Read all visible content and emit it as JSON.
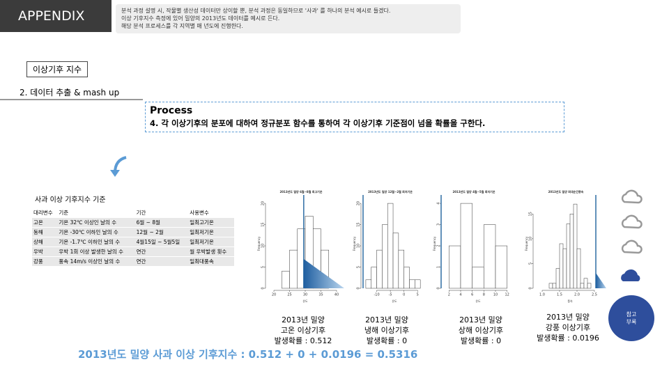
{
  "header": {
    "title": "APPENDIX",
    "notes": [
      "분석 과정 설명 시, 작물별 생산성 데이터만 상이할 뿐, 분석 과정은 동일하므로 '사과' 를 하나의 분석 예시로 들겠다.",
      "이상 기후지수 측정에 있어 밀양의 2013년도 데이터를 예시로 든다.",
      "해당 분석 프로세스를 각 지역별 매 년도에 진행한다."
    ]
  },
  "section": "이상기후 지수",
  "step": "2. 데이터 추출 & mash up",
  "process": {
    "title": "Process",
    "text": "4. 각 이상기후의 분포에 대하여 정규분포 함수를 통하여 각 이상기후 기준점이 넘을 확률을 구한다."
  },
  "table": {
    "title": "사과 이상 기후지수 기준",
    "header": [
      "대리변수",
      "기준",
      "기간",
      "사용변수"
    ],
    "rows": [
      [
        "고온",
        "기온 32℃ 이상인 날의 수",
        "6월 ~ 8월",
        "일최고기온"
      ],
      [
        "동해",
        "기온 -30℃ 이하인 날의 수",
        "12월 ~ 2월",
        "일최저기온"
      ],
      [
        "상해",
        "기온 -1.7℃ 이하인 날의 수",
        "4월15일 ~ 5월5일",
        "일최저기온"
      ],
      [
        "우박",
        "우박 1회 이상 발생한 날의 수",
        "연간",
        "월 우박발생 횟수"
      ],
      [
        "강풍",
        "풍속 14m/s 이상인 날의 수",
        "연간",
        "일최대풍속"
      ]
    ]
  },
  "histograms": [
    {
      "title": "2013년도 밀양 6월~8월 최고기온",
      "xlabel": "온도",
      "ylabel": "Frequency",
      "bins": [
        22.5,
        25,
        27.5,
        30,
        32.5,
        35,
        37.5
      ],
      "counts": [
        4,
        9,
        14,
        17,
        14,
        9
      ],
      "xlim": [
        18,
        42
      ],
      "ylim": [
        0,
        21
      ],
      "xticks": [
        20,
        25,
        30,
        35,
        40
      ],
      "yticks": [
        0,
        5,
        10,
        15,
        20
      ],
      "caption": [
        "2013년 밀양",
        "고온 이상기후",
        "발생확률 : 0.512"
      ]
    },
    {
      "title": "2013년도 밀양 12월~2월 최저기온",
      "xlabel": "온도",
      "ylabel": "Frequency",
      "bins": [
        -14,
        -12,
        -10,
        -8,
        -6,
        -4,
        -2,
        0,
        2,
        4,
        6
      ],
      "counts": [
        2,
        5,
        9,
        15,
        20,
        13,
        9,
        5,
        2,
        2
      ],
      "xlim": [
        -15,
        8
      ],
      "ylim": [
        0,
        21
      ],
      "xticks": [
        -10,
        -5,
        0,
        5
      ],
      "yticks": [
        0,
        5,
        10,
        15,
        20
      ],
      "caption": [
        "2013년 밀양",
        "냉해 이상기후",
        "발생확률 : 0"
      ]
    },
    {
      "title": "2013년도 밀양 4월~5월 최저기온",
      "xlabel": "온도",
      "ylabel": "Frequency",
      "bins": [
        2,
        4,
        6,
        8,
        10,
        12
      ],
      "counts": [
        2,
        4,
        1,
        3,
        2
      ],
      "xlim": [
        1,
        13
      ],
      "ylim": [
        0,
        4.2
      ],
      "xticks": [
        2,
        4,
        6,
        8,
        10,
        12
      ],
      "yticks": [
        0,
        1,
        2,
        3,
        4
      ],
      "caption": [
        "2013년 밀양",
        "상해 이상기후",
        "발생확률 : 0"
      ]
    },
    {
      "title": "2013년도 밀양 최대순간풍속",
      "xlabel": "풍속",
      "ylabel": "Frequency",
      "bins": [
        0.9,
        1.0,
        1.1,
        1.2,
        1.3,
        1.4,
        1.5,
        1.6,
        1.7,
        1.8,
        1.9,
        2.0,
        2.1,
        2.2,
        2.3,
        2.4,
        2.5,
        2.6
      ],
      "counts": [
        0,
        0,
        0,
        1,
        1,
        4,
        9,
        8,
        13,
        15,
        17,
        8,
        1,
        2,
        1,
        0,
        0
      ],
      "xlim": [
        0.8,
        2.8
      ],
      "ylim": [
        0,
        18
      ],
      "xticks": [
        {
          "value": 1,
          "label": "1.0"
        },
        1.5,
        {
          "value": 2,
          "label": "2.0"
        },
        2.5
      ],
      "yticks": [
        0,
        5,
        10,
        15
      ],
      "caption": [
        "2013년 밀양",
        "강풍 이상기후",
        "발생확률 : 0.0196"
      ]
    }
  ],
  "formula": "2013년도 밀양 사과 이상 기후지수 : 0.512 + 0 + 0.0196 = 0.5316",
  "side_button": [
    "참고",
    "부록"
  ]
}
